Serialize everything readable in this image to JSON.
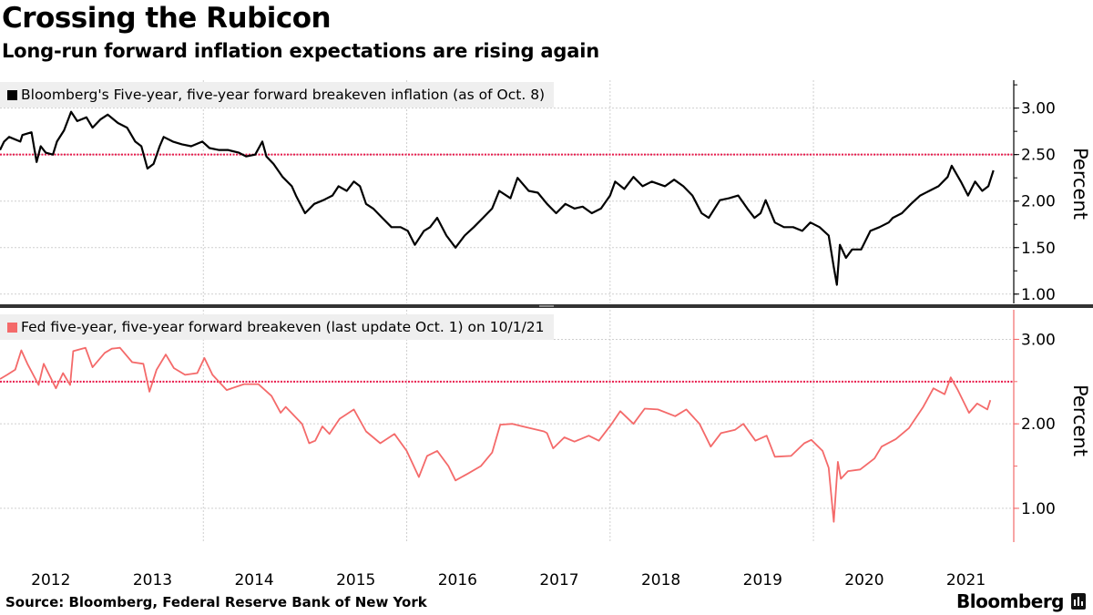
{
  "title": "Crossing the Rubicon",
  "subtitle": "Long-run forward inflation expectations are rising again",
  "source": "Source: Bloomberg, Federal Reserve Bank of New York",
  "logo": "Bloomberg",
  "colors": {
    "top_series": "#000000",
    "bottom_series": "#f46a6a",
    "reference_line": "#e8194b",
    "legend_bg": "#efefef",
    "grid": "#c8c8c8"
  },
  "chart_data": [
    {
      "type": "line",
      "legend": "Bloomberg's Five-year, five-year forward breakeven inflation (as of Oct. 8)",
      "ylabel": "Percent",
      "ylim": [
        0.9,
        3.3
      ],
      "xlim": [
        2012.0,
        2021.97
      ],
      "y_ticks": [
        "3.00",
        "2.50",
        "2.00",
        "1.50",
        "1.00"
      ],
      "x_tick_labels": [
        "2012",
        "2013",
        "2014",
        "2015",
        "2016",
        "2017",
        "2018",
        "2019",
        "2020",
        "2021"
      ],
      "reference_line": 2.5,
      "grid": true,
      "legend_position": "top-left",
      "series": [
        {
          "points": [
            [
              2012.0,
              2.55
            ],
            [
              2012.04,
              2.64
            ],
            [
              2012.09,
              2.69
            ],
            [
              2012.2,
              2.64
            ],
            [
              2012.22,
              2.71
            ],
            [
              2012.31,
              2.74
            ],
            [
              2012.36,
              2.42
            ],
            [
              2012.4,
              2.59
            ],
            [
              2012.45,
              2.52
            ],
            [
              2012.52,
              2.5
            ],
            [
              2012.56,
              2.64
            ],
            [
              2012.63,
              2.76
            ],
            [
              2012.7,
              2.96
            ],
            [
              2012.76,
              2.86
            ],
            [
              2012.85,
              2.9
            ],
            [
              2012.91,
              2.79
            ],
            [
              2012.99,
              2.88
            ],
            [
              2013.06,
              2.93
            ],
            [
              2013.16,
              2.84
            ],
            [
              2013.25,
              2.79
            ],
            [
              2013.33,
              2.64
            ],
            [
              2013.39,
              2.59
            ],
            [
              2013.45,
              2.35
            ],
            [
              2013.51,
              2.4
            ],
            [
              2013.57,
              2.59
            ],
            [
              2013.61,
              2.69
            ],
            [
              2013.7,
              2.64
            ],
            [
              2013.79,
              2.61
            ],
            [
              2013.88,
              2.59
            ],
            [
              2013.99,
              2.64
            ],
            [
              2014.06,
              2.57
            ],
            [
              2014.15,
              2.55
            ],
            [
              2014.24,
              2.55
            ],
            [
              2014.35,
              2.52
            ],
            [
              2014.42,
              2.48
            ],
            [
              2014.51,
              2.5
            ],
            [
              2014.58,
              2.64
            ],
            [
              2014.62,
              2.48
            ],
            [
              2014.69,
              2.4
            ],
            [
              2014.78,
              2.26
            ],
            [
              2014.87,
              2.16
            ],
            [
              2014.91,
              2.06
            ],
            [
              2015.0,
              1.87
            ],
            [
              2015.09,
              1.97
            ],
            [
              2015.18,
              2.01
            ],
            [
              2015.27,
              2.06
            ],
            [
              2015.33,
              2.16
            ],
            [
              2015.41,
              2.11
            ],
            [
              2015.48,
              2.21
            ],
            [
              2015.54,
              2.16
            ],
            [
              2015.6,
              1.97
            ],
            [
              2015.67,
              1.92
            ],
            [
              2015.76,
              1.82
            ],
            [
              2015.85,
              1.72
            ],
            [
              2015.94,
              1.72
            ],
            [
              2016.01,
              1.68
            ],
            [
              2016.08,
              1.53
            ],
            [
              2016.17,
              1.68
            ],
            [
              2016.23,
              1.72
            ],
            [
              2016.3,
              1.82
            ],
            [
              2016.39,
              1.63
            ],
            [
              2016.48,
              1.5
            ],
            [
              2016.57,
              1.63
            ],
            [
              2016.66,
              1.72
            ],
            [
              2016.75,
              1.82
            ],
            [
              2016.84,
              1.92
            ],
            [
              2016.91,
              2.11
            ],
            [
              2017.02,
              2.03
            ],
            [
              2017.09,
              2.25
            ],
            [
              2017.2,
              2.11
            ],
            [
              2017.29,
              2.09
            ],
            [
              2017.38,
              1.97
            ],
            [
              2017.47,
              1.87
            ],
            [
              2017.56,
              1.97
            ],
            [
              2017.65,
              1.92
            ],
            [
              2017.73,
              1.94
            ],
            [
              2017.82,
              1.87
            ],
            [
              2017.91,
              1.92
            ],
            [
              2018.0,
              2.06
            ],
            [
              2018.05,
              2.21
            ],
            [
              2018.14,
              2.13
            ],
            [
              2018.23,
              2.26
            ],
            [
              2018.32,
              2.16
            ],
            [
              2018.41,
              2.21
            ],
            [
              2018.54,
              2.16
            ],
            [
              2018.63,
              2.23
            ],
            [
              2018.72,
              2.16
            ],
            [
              2018.81,
              2.06
            ],
            [
              2018.9,
              1.87
            ],
            [
              2018.97,
              1.82
            ],
            [
              2019.08,
              2.01
            ],
            [
              2019.17,
              2.03
            ],
            [
              2019.26,
              2.06
            ],
            [
              2019.35,
              1.92
            ],
            [
              2019.42,
              1.82
            ],
            [
              2019.48,
              1.87
            ],
            [
              2019.53,
              2.01
            ],
            [
              2019.62,
              1.77
            ],
            [
              2019.71,
              1.72
            ],
            [
              2019.8,
              1.72
            ],
            [
              2019.89,
              1.68
            ],
            [
              2019.97,
              1.77
            ],
            [
              2020.06,
              1.72
            ],
            [
              2020.15,
              1.63
            ],
            [
              2020.2,
              1.29
            ],
            [
              2020.23,
              1.1
            ],
            [
              2020.26,
              1.53
            ],
            [
              2020.32,
              1.39
            ],
            [
              2020.38,
              1.48
            ],
            [
              2020.47,
              1.48
            ],
            [
              2020.56,
              1.68
            ],
            [
              2020.65,
              1.72
            ],
            [
              2020.74,
              1.77
            ],
            [
              2020.78,
              1.82
            ],
            [
              2020.87,
              1.87
            ],
            [
              2020.96,
              1.97
            ],
            [
              2021.05,
              2.06
            ],
            [
              2021.14,
              2.11
            ],
            [
              2021.23,
              2.16
            ],
            [
              2021.32,
              2.26
            ],
            [
              2021.36,
              2.38
            ],
            [
              2021.45,
              2.21
            ],
            [
              2021.52,
              2.06
            ],
            [
              2021.59,
              2.21
            ],
            [
              2021.66,
              2.11
            ],
            [
              2021.72,
              2.16
            ],
            [
              2021.77,
              2.33
            ]
          ]
        }
      ]
    },
    {
      "type": "line",
      "legend": "Fed five-year, five-year forward breakeven (last update Oct. 1) on 10/1/21",
      "ylabel": "Percent",
      "ylim": [
        0.6,
        3.35
      ],
      "xlim": [
        2012.0,
        2021.97
      ],
      "y_ticks": [
        "3.00",
        "2.00",
        "1.00"
      ],
      "x_tick_labels": [
        "2012",
        "2013",
        "2014",
        "2015",
        "2016",
        "2017",
        "2018",
        "2019",
        "2020",
        "2021"
      ],
      "reference_line": 2.5,
      "grid": true,
      "legend_position": "top-left",
      "series": [
        {
          "points": [
            [
              2012.0,
              2.53
            ],
            [
              2012.07,
              2.58
            ],
            [
              2012.15,
              2.64
            ],
            [
              2012.21,
              2.87
            ],
            [
              2012.27,
              2.71
            ],
            [
              2012.38,
              2.46
            ],
            [
              2012.43,
              2.71
            ],
            [
              2012.55,
              2.42
            ],
            [
              2012.62,
              2.6
            ],
            [
              2012.69,
              2.46
            ],
            [
              2012.72,
              2.86
            ],
            [
              2012.84,
              2.9
            ],
            [
              2012.91,
              2.67
            ],
            [
              2013.03,
              2.84
            ],
            [
              2013.1,
              2.89
            ],
            [
              2013.18,
              2.9
            ],
            [
              2013.3,
              2.73
            ],
            [
              2013.41,
              2.71
            ],
            [
              2013.47,
              2.38
            ],
            [
              2013.54,
              2.64
            ],
            [
              2013.63,
              2.82
            ],
            [
              2013.71,
              2.66
            ],
            [
              2013.82,
              2.58
            ],
            [
              2013.94,
              2.6
            ],
            [
              2014.01,
              2.78
            ],
            [
              2014.09,
              2.58
            ],
            [
              2014.23,
              2.4
            ],
            [
              2014.4,
              2.47
            ],
            [
              2014.54,
              2.47
            ],
            [
              2014.67,
              2.33
            ],
            [
              2014.76,
              2.13
            ],
            [
              2014.81,
              2.2
            ],
            [
              2014.97,
              2.0
            ],
            [
              2015.04,
              1.77
            ],
            [
              2015.1,
              1.8
            ],
            [
              2015.17,
              1.97
            ],
            [
              2015.24,
              1.88
            ],
            [
              2015.34,
              2.06
            ],
            [
              2015.48,
              2.17
            ],
            [
              2015.6,
              1.91
            ],
            [
              2015.74,
              1.77
            ],
            [
              2015.88,
              1.88
            ],
            [
              2016.0,
              1.68
            ],
            [
              2016.12,
              1.37
            ],
            [
              2016.2,
              1.62
            ],
            [
              2016.3,
              1.68
            ],
            [
              2016.41,
              1.5
            ],
            [
              2016.48,
              1.33
            ],
            [
              2016.6,
              1.41
            ],
            [
              2016.73,
              1.5
            ],
            [
              2016.84,
              1.66
            ],
            [
              2016.92,
              1.99
            ],
            [
              2017.04,
              2.0
            ],
            [
              2017.14,
              1.97
            ],
            [
              2017.35,
              1.91
            ],
            [
              2017.38,
              1.89
            ],
            [
              2017.44,
              1.71
            ],
            [
              2017.55,
              1.84
            ],
            [
              2017.65,
              1.79
            ],
            [
              2017.79,
              1.86
            ],
            [
              2017.89,
              1.8
            ],
            [
              2018.01,
              1.99
            ],
            [
              2018.1,
              2.15
            ],
            [
              2018.23,
              2.0
            ],
            [
              2018.34,
              2.18
            ],
            [
              2018.47,
              2.17
            ],
            [
              2018.64,
              2.09
            ],
            [
              2018.75,
              2.17
            ],
            [
              2018.88,
              2.0
            ],
            [
              2018.99,
              1.73
            ],
            [
              2019.09,
              1.89
            ],
            [
              2019.23,
              1.93
            ],
            [
              2019.31,
              2.0
            ],
            [
              2019.43,
              1.8
            ],
            [
              2019.54,
              1.86
            ],
            [
              2019.62,
              1.61
            ],
            [
              2019.78,
              1.62
            ],
            [
              2019.91,
              1.77
            ],
            [
              2019.98,
              1.81
            ],
            [
              2020.09,
              1.68
            ],
            [
              2020.15,
              1.48
            ],
            [
              2020.2,
              0.84
            ],
            [
              2020.24,
              1.55
            ],
            [
              2020.27,
              1.35
            ],
            [
              2020.34,
              1.44
            ],
            [
              2020.46,
              1.46
            ],
            [
              2020.6,
              1.59
            ],
            [
              2020.67,
              1.73
            ],
            [
              2020.81,
              1.82
            ],
            [
              2020.94,
              1.95
            ],
            [
              2021.08,
              2.2
            ],
            [
              2021.18,
              2.42
            ],
            [
              2021.29,
              2.35
            ],
            [
              2021.35,
              2.55
            ],
            [
              2021.42,
              2.4
            ],
            [
              2021.53,
              2.13
            ],
            [
              2021.61,
              2.24
            ],
            [
              2021.71,
              2.17
            ],
            [
              2021.74,
              2.28
            ]
          ]
        }
      ]
    }
  ]
}
